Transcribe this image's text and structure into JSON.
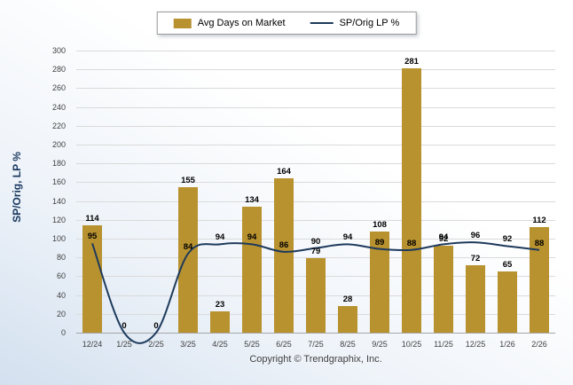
{
  "legend": {
    "bar_label": "Avg Days on Market",
    "line_label": "SP/Orig LP %"
  },
  "chart_data": {
    "type": "bar",
    "subtype": "bar+line combo",
    "categories": [
      "12/24",
      "1/25",
      "2/25",
      "3/25",
      "4/25",
      "5/25",
      "6/25",
      "7/25",
      "8/25",
      "9/25",
      "10/25",
      "11/25",
      "12/25",
      "1/26",
      "2/26"
    ],
    "series": [
      {
        "name": "Avg Days on Market",
        "type": "bar",
        "color": "#B8922F",
        "values": [
          114,
          0,
          0,
          155,
          23,
          134,
          164,
          79,
          28,
          108,
          281,
          92,
          72,
          65,
          112
        ]
      },
      {
        "name": "SP/Orig LP %",
        "type": "line",
        "color": "#1E3A5C",
        "values": [
          95,
          0,
          0,
          84,
          94,
          94,
          86,
          90,
          94,
          89,
          88,
          94,
          96,
          92,
          88
        ]
      }
    ],
    "title": "",
    "xlabel": "",
    "ylabel": "SP/Orig, LP %",
    "ylim": [
      0,
      300
    ],
    "ytick_step": 20,
    "grid": true,
    "legend_position": "top",
    "colors": {
      "grid": "#DADADA",
      "baseline": "#A6A6A6",
      "axis_text": "#404040",
      "value_label": "#000000",
      "y_title": "#17375E"
    }
  },
  "footer": {
    "copyright": "Copyright © Trendgraphix, Inc."
  }
}
